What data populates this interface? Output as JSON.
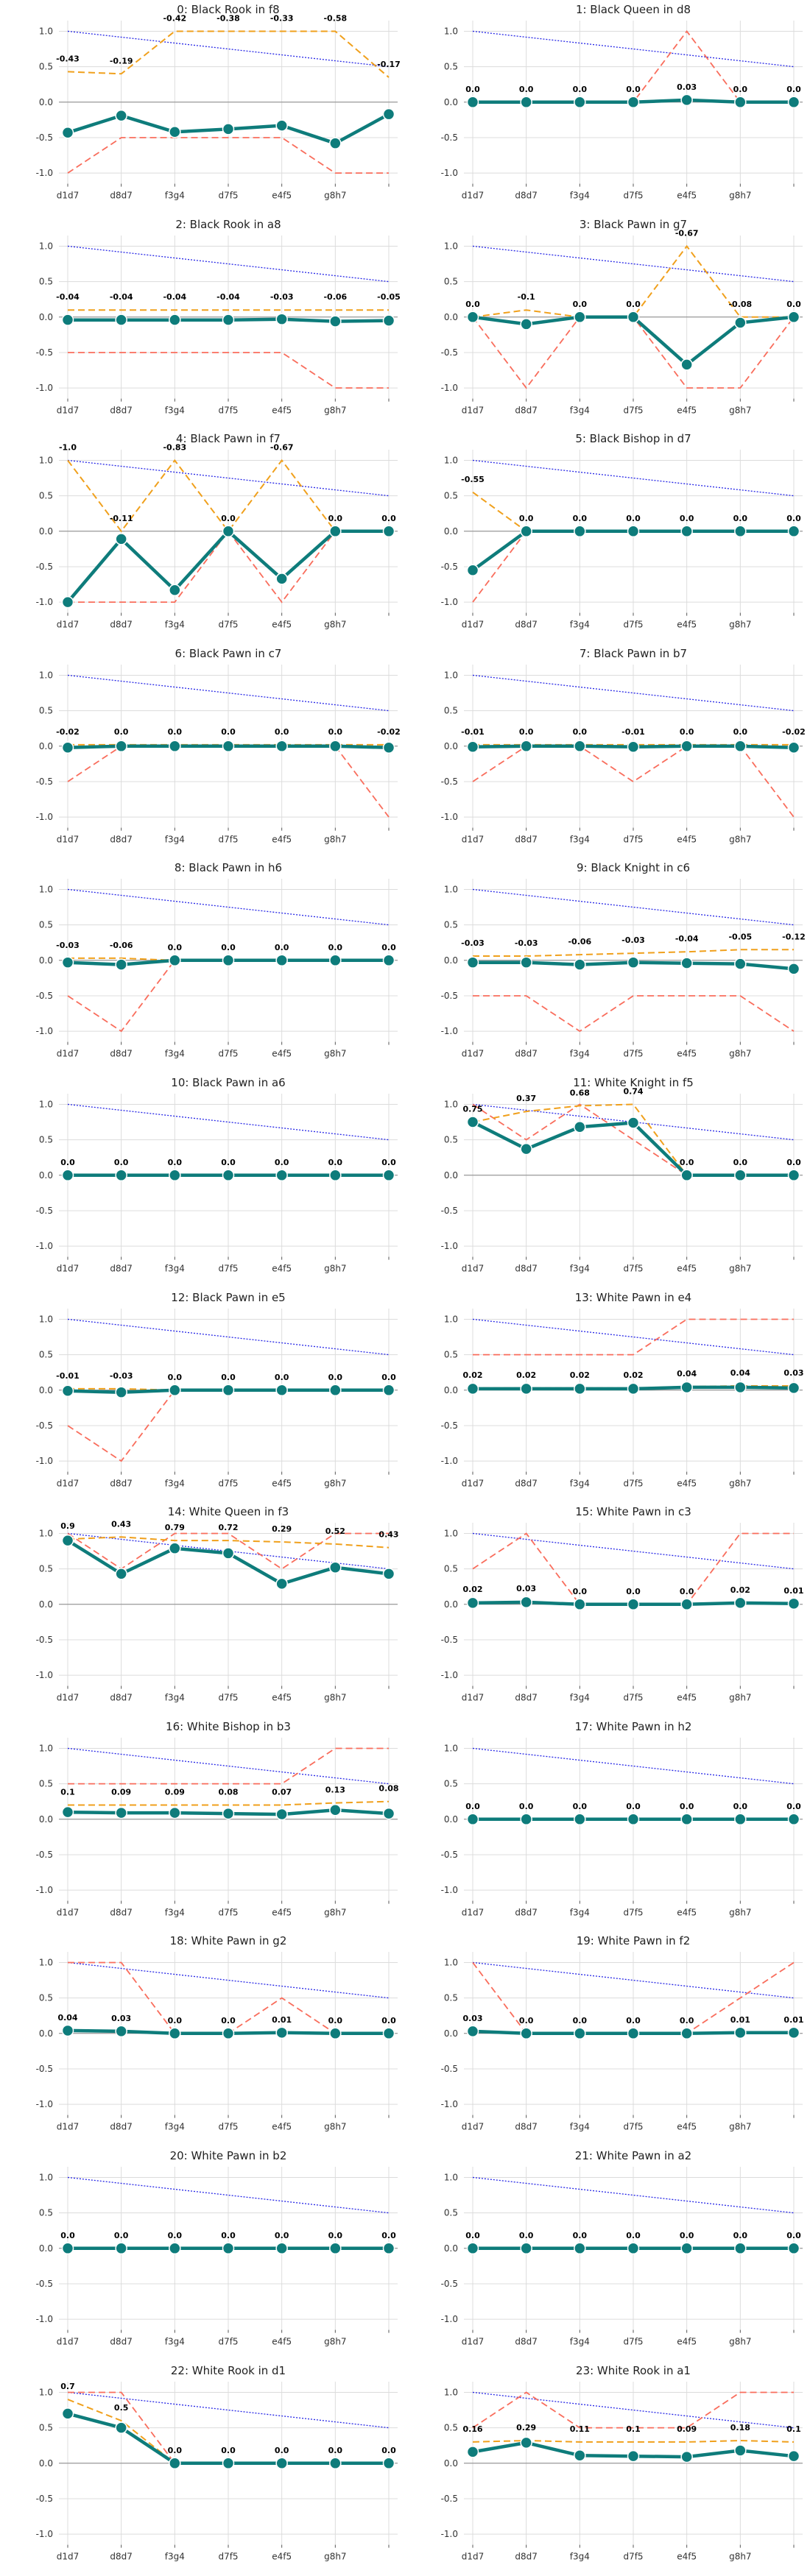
{
  "chart_data": {
    "type": "line",
    "x_ticks": [
      "d1d7",
      "d8d7",
      "f3g4",
      "d7f5",
      "e4f5",
      "g8h7",
      ""
    ],
    "y_ticks": [
      "1.0",
      "0.5",
      "0.0",
      "-0.5",
      "-1.0"
    ],
    "ylim": [
      -1.15,
      1.15
    ],
    "grid": true,
    "colors": {
      "main": "#0e7c7b",
      "orange": "#f0a01c",
      "red": "#f96d5c",
      "blue": "#2626e6",
      "zero": "#888888"
    },
    "panels": [
      {
        "title": "0: Black Rook in f8",
        "main": [
          -0.43,
          -0.19,
          -0.42,
          -0.38,
          -0.33,
          -0.58,
          -0.17
        ],
        "orange": [
          0.43,
          0.4,
          1.0,
          1.0,
          1.0,
          1.0,
          0.35
        ],
        "red": [
          -1.0,
          -0.5,
          -0.5,
          -0.5,
          -0.5,
          -1.0,
          -1.0
        ]
      },
      {
        "title": "1: Black Queen in d8",
        "main": [
          0.0,
          0.0,
          0.0,
          0.0,
          0.03,
          0.0,
          0.0
        ],
        "orange": [
          0.0,
          0.0,
          0.0,
          0.0,
          0.03,
          0.0,
          0.0
        ],
        "red": [
          0.0,
          0.0,
          0.0,
          0.0,
          1.0,
          0.0,
          0.0
        ]
      },
      {
        "title": "2: Black Rook in a8",
        "main": [
          -0.04,
          -0.04,
          -0.04,
          -0.04,
          -0.03,
          -0.06,
          -0.05
        ],
        "orange": [
          0.1,
          0.1,
          0.1,
          0.1,
          0.1,
          0.1,
          0.1
        ],
        "red": [
          -0.5,
          -0.5,
          -0.5,
          -0.5,
          -0.5,
          -1.0,
          -1.0
        ]
      },
      {
        "title": "3: Black Pawn in g7",
        "main": [
          0.0,
          -0.1,
          0.0,
          0.0,
          -0.67,
          -0.08,
          0.0
        ],
        "orange": [
          0.0,
          0.1,
          0.0,
          0.0,
          1.0,
          0.0,
          0.0
        ],
        "red": [
          0.0,
          -1.0,
          0.0,
          0.0,
          -1.0,
          -1.0,
          0.0
        ]
      },
      {
        "title": "4: Black Pawn in f7",
        "main": [
          -1.0,
          -0.11,
          -0.83,
          0.0,
          -0.67,
          0.0,
          0.0
        ],
        "orange": [
          1.0,
          0.0,
          1.0,
          0.0,
          1.0,
          0.0,
          0.0
        ],
        "red": [
          -1.0,
          -1.0,
          -1.0,
          0.0,
          -1.0,
          0.0,
          0.0
        ]
      },
      {
        "title": "5: Black Bishop in d7",
        "main": [
          -0.55,
          0.0,
          0.0,
          0.0,
          0.0,
          0.0,
          0.0
        ],
        "orange": [
          0.55,
          0.0,
          0.0,
          0.0,
          0.0,
          0.0,
          0.0
        ],
        "red": [
          -1.0,
          0.0,
          0.0,
          0.0,
          0.0,
          0.0,
          0.0
        ]
      },
      {
        "title": "6: Black Pawn in c7",
        "main": [
          -0.02,
          0.0,
          0.0,
          0.0,
          0.0,
          0.0,
          -0.02
        ],
        "orange": [
          0.02,
          0.02,
          0.02,
          0.02,
          0.02,
          0.02,
          0.02
        ],
        "red": [
          -0.5,
          0.0,
          0.0,
          0.0,
          0.0,
          0.0,
          -1.0
        ]
      },
      {
        "title": "7: Black Pawn in b7",
        "main": [
          -0.01,
          0.0,
          0.0,
          -0.01,
          0.0,
          0.0,
          -0.02
        ],
        "orange": [
          0.02,
          0.02,
          0.02,
          0.02,
          0.02,
          0.02,
          0.02
        ],
        "red": [
          -0.5,
          0.0,
          0.0,
          -0.5,
          0.0,
          0.0,
          -1.0
        ]
      },
      {
        "title": "8: Black Pawn in h6",
        "main": [
          -0.03,
          -0.06,
          0.0,
          0.0,
          0.0,
          0.0,
          0.0
        ],
        "orange": [
          0.03,
          0.03,
          0.0,
          0.0,
          0.0,
          0.0,
          0.0
        ],
        "red": [
          -0.5,
          -1.0,
          0.0,
          0.0,
          0.0,
          0.0,
          0.0
        ]
      },
      {
        "title": "9: Black Knight in c6",
        "main": [
          -0.03,
          -0.03,
          -0.06,
          -0.03,
          -0.04,
          -0.05,
          -0.12
        ],
        "orange": [
          0.06,
          0.06,
          0.08,
          0.1,
          0.12,
          0.15,
          0.15
        ],
        "red": [
          -0.5,
          -0.5,
          -1.0,
          -0.5,
          -0.5,
          -0.5,
          -1.0
        ]
      },
      {
        "title": "10: Black Pawn in a6",
        "main": [
          0.0,
          0.0,
          0.0,
          0.0,
          0.0,
          0.0,
          0.0
        ],
        "orange": [
          0.0,
          0.0,
          0.0,
          0.0,
          0.0,
          0.0,
          0.0
        ],
        "red": [
          0.0,
          0.0,
          0.0,
          0.0,
          0.0,
          0.0,
          0.0
        ]
      },
      {
        "title": "11: White Knight in f5",
        "main": [
          0.75,
          0.37,
          0.68,
          0.74,
          0.0,
          0.0,
          0.0
        ],
        "orange": [
          0.75,
          0.9,
          0.98,
          1.0,
          0.0,
          0.0,
          0.0
        ],
        "red": [
          1.0,
          0.5,
          1.0,
          0.5,
          0.0,
          0.0,
          0.0
        ]
      },
      {
        "title": "12: Black Pawn in e5",
        "main": [
          -0.01,
          -0.03,
          0.0,
          0.0,
          0.0,
          0.0,
          0.0
        ],
        "orange": [
          0.02,
          0.02,
          0.0,
          0.0,
          0.0,
          0.0,
          0.0
        ],
        "red": [
          -0.5,
          -1.0,
          0.0,
          0.0,
          0.0,
          0.0,
          0.0
        ]
      },
      {
        "title": "13: White Pawn in e4",
        "main": [
          0.02,
          0.02,
          0.02,
          0.02,
          0.04,
          0.04,
          0.03
        ],
        "orange": [
          0.03,
          0.03,
          0.03,
          0.03,
          0.05,
          0.06,
          0.06
        ],
        "red": [
          0.5,
          0.5,
          0.5,
          0.5,
          1.0,
          1.0,
          1.0
        ]
      },
      {
        "title": "14: White Queen in f3",
        "main": [
          0.9,
          0.43,
          0.79,
          0.72,
          0.29,
          0.52,
          0.43
        ],
        "orange": [
          0.92,
          0.95,
          0.9,
          0.9,
          0.88,
          0.85,
          0.8
        ],
        "red": [
          1.0,
          0.5,
          1.0,
          1.0,
          0.5,
          1.0,
          1.0
        ]
      },
      {
        "title": "15: White Pawn in c3",
        "main": [
          0.02,
          0.03,
          0.0,
          0.0,
          0.0,
          0.02,
          0.01
        ],
        "orange": [
          0.03,
          0.04,
          0.0,
          0.0,
          0.0,
          0.02,
          0.01
        ],
        "red": [
          0.5,
          1.0,
          0.0,
          0.0,
          0.0,
          1.0,
          1.0
        ]
      },
      {
        "title": "16: White Bishop in b3",
        "main": [
          0.1,
          0.09,
          0.09,
          0.08,
          0.07,
          0.13,
          0.08
        ],
        "orange": [
          0.2,
          0.2,
          0.2,
          0.2,
          0.2,
          0.23,
          0.25
        ],
        "red": [
          0.5,
          0.5,
          0.5,
          0.5,
          0.5,
          1.0,
          1.0
        ]
      },
      {
        "title": "17: White Pawn in h2",
        "main": [
          0.0,
          0.0,
          0.0,
          0.0,
          0.0,
          0.0,
          0.0
        ],
        "orange": [
          0.0,
          0.0,
          0.0,
          0.0,
          0.0,
          0.0,
          0.0
        ],
        "red": [
          0.0,
          0.0,
          0.0,
          0.0,
          0.0,
          0.0,
          0.0
        ]
      },
      {
        "title": "18: White Pawn in g2",
        "main": [
          0.04,
          0.03,
          0.0,
          0.0,
          0.01,
          0.0,
          0.0
        ],
        "orange": [
          0.04,
          0.03,
          0.0,
          0.0,
          0.01,
          0.0,
          0.0
        ],
        "red": [
          1.0,
          1.0,
          0.0,
          0.0,
          0.5,
          0.0,
          0.0
        ]
      },
      {
        "title": "19: White Pawn in f2",
        "main": [
          0.03,
          0.0,
          0.0,
          0.0,
          0.0,
          0.01,
          0.01
        ],
        "orange": [
          0.03,
          0.0,
          0.0,
          0.0,
          0.0,
          0.01,
          0.01
        ],
        "red": [
          1.0,
          0.0,
          0.0,
          0.0,
          0.0,
          0.5,
          1.0
        ]
      },
      {
        "title": "20: White Pawn in b2",
        "main": [
          0.0,
          0.0,
          0.0,
          0.0,
          0.0,
          0.0,
          0.0
        ],
        "orange": [
          0.0,
          0.0,
          0.0,
          0.0,
          0.0,
          0.0,
          0.0
        ],
        "red": [
          0.0,
          0.0,
          0.0,
          0.0,
          0.0,
          0.0,
          0.0
        ]
      },
      {
        "title": "21: White Pawn in a2",
        "main": [
          0.0,
          0.0,
          0.0,
          0.0,
          0.0,
          0.0,
          0.0
        ],
        "orange": [
          0.0,
          0.0,
          0.0,
          0.0,
          0.0,
          0.0,
          0.0
        ],
        "red": [
          0.0,
          0.0,
          0.0,
          0.0,
          0.0,
          0.0,
          0.0
        ]
      },
      {
        "title": "22: White Rook in d1",
        "main": [
          0.7,
          0.5,
          0.0,
          0.0,
          0.0,
          0.0,
          0.0
        ],
        "orange": [
          0.9,
          0.6,
          0.0,
          0.0,
          0.0,
          0.0,
          0.0
        ],
        "red": [
          1.0,
          1.0,
          0.0,
          0.0,
          0.0,
          0.0,
          0.0
        ]
      },
      {
        "title": "23: White Rook in a1",
        "main": [
          0.16,
          0.29,
          0.11,
          0.1,
          0.09,
          0.18,
          0.1
        ],
        "orange": [
          0.3,
          0.32,
          0.3,
          0.3,
          0.3,
          0.32,
          0.3
        ],
        "red": [
          0.5,
          1.0,
          0.5,
          0.5,
          0.5,
          1.0,
          1.0
        ]
      }
    ],
    "blue_line": [
      1.0,
      0.5
    ]
  }
}
